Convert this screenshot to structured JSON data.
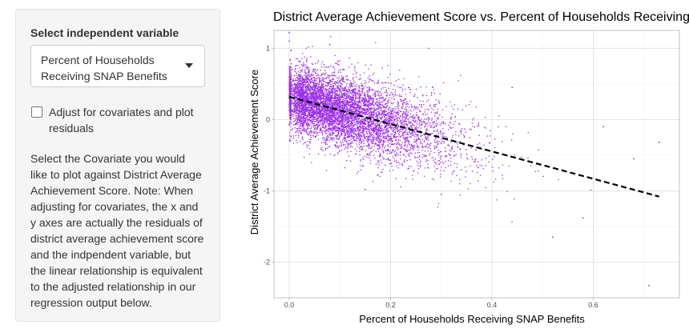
{
  "sidebar": {
    "select_label": "Select independent variable",
    "select_value_line1": "Percent of Households",
    "select_value_line2": "Receiving SNAP Benefits",
    "checkbox_label_line1": "Adjust for covariates and plot",
    "checkbox_label_line2": "residuals",
    "checkbox_checked": false,
    "help_lines": [
      "Select the Covariate you would",
      "like to plot against District Average",
      "Achievement Score. Note: When",
      "adjusting for covariates, the x and",
      "y axes are actually the residuals of",
      "district average achievement score",
      "and the indpendent variable, but",
      "the linear relationship is equivalent",
      "to the adjusted relationship in our",
      "regression output below."
    ]
  },
  "chart_data": {
    "type": "scatter",
    "title": "District Average Achievement Score vs. Percent of Households Receiving",
    "xlabel": "Percent of Households Receiving SNAP Benefits",
    "ylabel": "District Average Achievement Score",
    "xlim": [
      -0.03,
      0.77
    ],
    "ylim": [
      -2.5,
      1.25
    ],
    "x_ticks": [
      "0.0",
      "0.2",
      "0.4",
      "0.6"
    ],
    "x_tick_values": [
      0.0,
      0.2,
      0.4,
      0.6
    ],
    "y_ticks": [
      "1",
      "0",
      "-1",
      "-2"
    ],
    "y_tick_values": [
      1,
      0,
      -1,
      -2
    ],
    "grid": true,
    "point_color": "#9b30e8",
    "fit_line": {
      "style": "dashed",
      "color": "#000000",
      "x": [
        0.0,
        0.73
      ],
      "y": [
        0.32,
        -1.08
      ]
    },
    "point_cloud_trend": {
      "x_range": [
        0.0,
        0.6
      ],
      "y_at_x0": 0.32,
      "slope": -1.92
    },
    "notable_points": [
      {
        "x": 0.0,
        "y": 1.22
      },
      {
        "x": 0.0,
        "y": 1.1
      },
      {
        "x": 0.52,
        "y": -1.65
      },
      {
        "x": 0.71,
        "y": -2.33
      },
      {
        "x": 0.73,
        "y": -0.32
      },
      {
        "x": 0.68,
        "y": -0.55
      },
      {
        "x": 0.62,
        "y": -0.1
      },
      {
        "x": 0.08,
        "y": 1.05
      },
      {
        "x": 0.15,
        "y": -0.98
      },
      {
        "x": 0.3,
        "y": -1.05
      },
      {
        "x": 0.58,
        "y": -1.38
      },
      {
        "x": 0.44,
        "y": 0.45
      }
    ]
  }
}
